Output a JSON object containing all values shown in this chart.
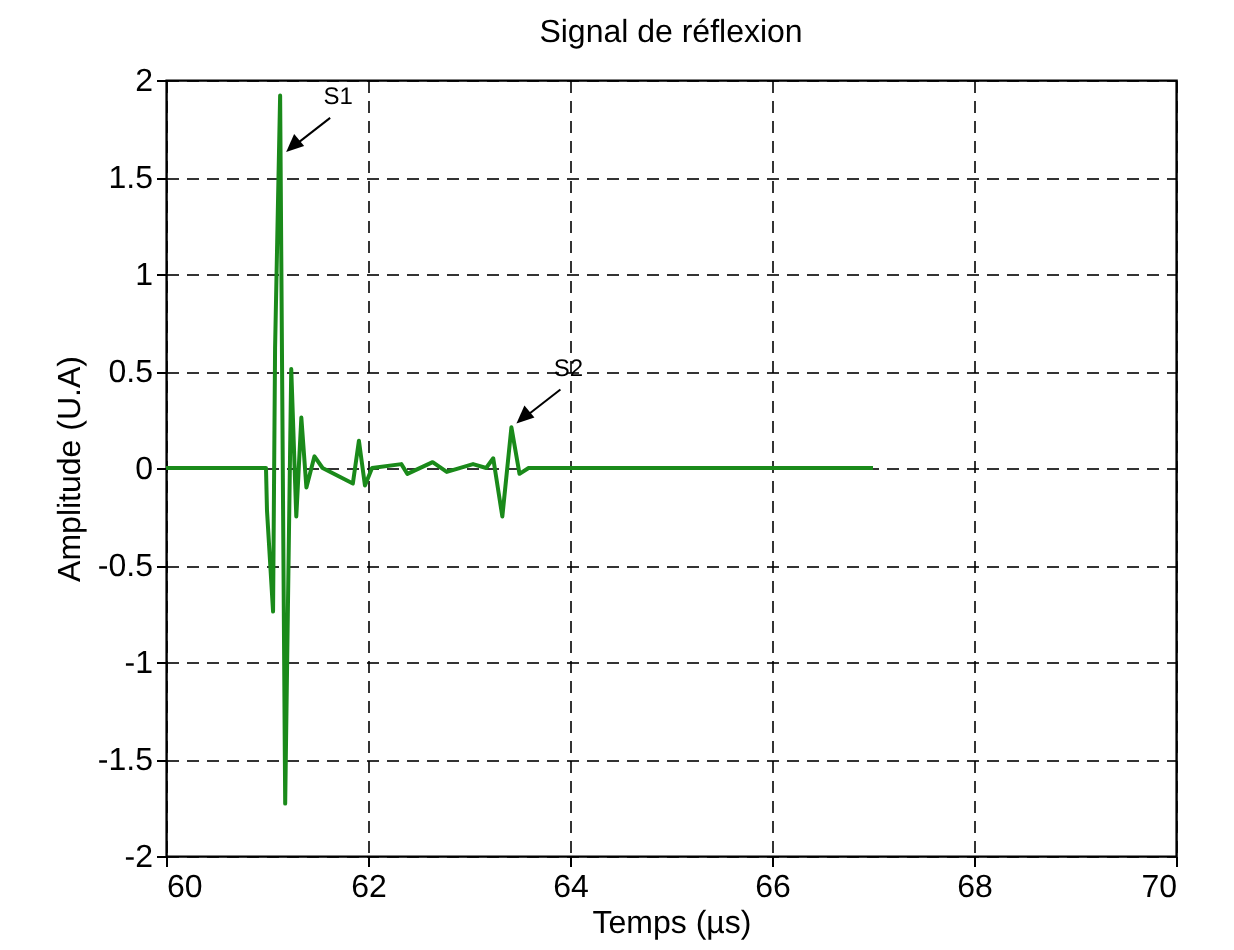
{
  "chart_data": {
    "type": "line",
    "title": "Signal de réflexion",
    "xlabel": "Temps (µs)",
    "ylabel": "Amplitude (U.A)",
    "xlim": [
      60,
      70
    ],
    "xticks": [
      60,
      62,
      64,
      66,
      68,
      70
    ],
    "ylim": [
      -2,
      2
    ],
    "yticks": [
      -2,
      -1.5,
      -1,
      -0.5,
      0,
      0.5,
      1,
      1.5,
      2
    ],
    "grid": true,
    "line_style": "solid",
    "annotations": [
      {
        "text": "S1",
        "x": 61.15,
        "y": 1.65
      },
      {
        "text": "S2",
        "x": 63.43,
        "y": 0.25
      }
    ],
    "series": [
      {
        "color": "#1a8a1a",
        "x": [
          60,
          60.99,
          61.0,
          61.06,
          61.08,
          61.13,
          61.18,
          61.24,
          61.29,
          61.34,
          61.39,
          61.47,
          61.55,
          61.85,
          61.91,
          61.97,
          62.04,
          62.33,
          62.39,
          62.64,
          62.78,
          63.04,
          63.17,
          63.24,
          63.33,
          63.42,
          63.5,
          63.59,
          67
        ],
        "values": [
          0,
          0,
          -0.22,
          -0.74,
          0.62,
          1.92,
          -1.73,
          0.51,
          -0.25,
          0.26,
          -0.1,
          0.06,
          0,
          -0.08,
          0.14,
          -0.09,
          0,
          0.02,
          -0.03,
          0.03,
          -0.02,
          0.02,
          0,
          0.05,
          -0.25,
          0.21,
          -0.03,
          0,
          0
        ]
      }
    ]
  }
}
